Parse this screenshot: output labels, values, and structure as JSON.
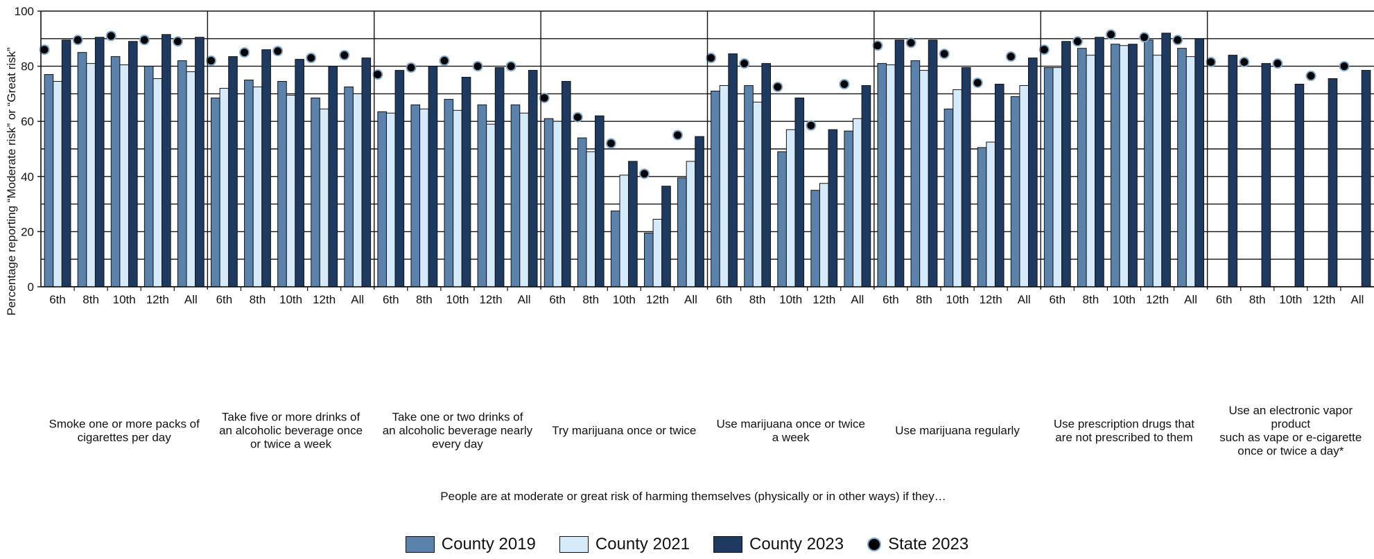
{
  "chart_data": {
    "type": "bar",
    "title": "",
    "ylabel": "Percentage reporting “Moderate risk” or “Great risk”",
    "xlabel": "People are at moderate or great risk of harming themselves (physically or in other ways) if they…",
    "ylim": [
      0,
      100
    ],
    "yticks": [
      "0",
      "20",
      "40",
      "60",
      "80",
      "100"
    ],
    "grid": "horizontal every 10",
    "legend_position": "bottom",
    "subcategories": [
      "6th",
      "8th",
      "10th",
      "12th",
      "All"
    ],
    "groups": [
      {
        "label": "Smoke one or more packs of\ncigarettes per day",
        "county_2019": [
          77,
          85,
          83.5,
          80,
          82
        ],
        "county_2021": [
          74.5,
          81,
          80.5,
          75.5,
          78
        ],
        "county_2023": [
          89.5,
          90.5,
          89,
          91.5,
          90.5
        ],
        "state_2023": [
          86,
          89.5,
          91,
          89.5,
          89
        ]
      },
      {
        "label": "Take five or more drinks of\nan alcoholic beverage once\nor twice a week",
        "county_2019": [
          68.5,
          75,
          74.5,
          68.5,
          72.5
        ],
        "county_2021": [
          72,
          72.5,
          69.5,
          64.5,
          70
        ],
        "county_2023": [
          83.5,
          86,
          82.5,
          80,
          83
        ],
        "state_2023": [
          82,
          85,
          85.5,
          83,
          84
        ]
      },
      {
        "label": "Take one or two drinks of\nan alcoholic beverage nearly\nevery day",
        "county_2019": [
          63.5,
          66,
          68,
          66,
          66
        ],
        "county_2021": [
          63,
          64.5,
          64,
          59,
          63
        ],
        "county_2023": [
          78.5,
          80,
          76,
          79.5,
          78.5
        ],
        "state_2023": [
          77,
          79.5,
          82,
          80,
          80
        ]
      },
      {
        "label": "Try marijuana once or twice",
        "county_2019": [
          61,
          54,
          27.5,
          19.5,
          39.5
        ],
        "county_2021": [
          60,
          49,
          40.5,
          24.5,
          45.5
        ],
        "county_2023": [
          74.5,
          62,
          45.5,
          36.5,
          54.5
        ],
        "state_2023": [
          68.5,
          61.5,
          52,
          41,
          55
        ]
      },
      {
        "label": "Use marijuana once or twice\na week",
        "county_2019": [
          71,
          73,
          49,
          35,
          56.5
        ],
        "county_2021": [
          73,
          67,
          57,
          37.5,
          61
        ],
        "county_2023": [
          84.5,
          81,
          68.5,
          57,
          73
        ],
        "state_2023": [
          83,
          81,
          72.5,
          58.5,
          73.5
        ]
      },
      {
        "label": "Use marijuana regularly",
        "county_2019": [
          81,
          82,
          64.5,
          50.5,
          69
        ],
        "county_2021": [
          80.5,
          78.5,
          71.5,
          52.5,
          73
        ],
        "county_2023": [
          89.5,
          89.5,
          79.5,
          73.5,
          83
        ],
        "state_2023": [
          87.5,
          88.5,
          84.5,
          74,
          83.5
        ]
      },
      {
        "label": "Use prescription drugs that\nare not prescribed to them",
        "county_2019": [
          79.5,
          86.5,
          88,
          89.5,
          86.5
        ],
        "county_2021": [
          79.5,
          84,
          87.5,
          84,
          83.5
        ],
        "county_2023": [
          89,
          90.5,
          88,
          92,
          90
        ],
        "state_2023": [
          86,
          89,
          91.5,
          90.5,
          89.5
        ]
      },
      {
        "label": "Use an electronic vapor\nproduct\nsuch as vape or e-cigarette\nonce or twice a day*",
        "county_2019": [
          null,
          null,
          null,
          null,
          null
        ],
        "county_2021": [
          null,
          null,
          null,
          null,
          null
        ],
        "county_2023": [
          84,
          81,
          73.5,
          75.5,
          78.5
        ],
        "state_2023": [
          81.5,
          81.5,
          81,
          76.5,
          80
        ]
      }
    ],
    "series": [
      {
        "name": "County 2019",
        "key": "county_2019",
        "color": "#5b82ab"
      },
      {
        "name": "County 2021",
        "key": "county_2021",
        "color": "#d5ebfa"
      },
      {
        "name": "County 2023",
        "key": "county_2023",
        "color": "#1f3a60"
      },
      {
        "name": "State 2023",
        "key": "state_2023",
        "color": "#000000",
        "marker": "dot"
      }
    ]
  }
}
